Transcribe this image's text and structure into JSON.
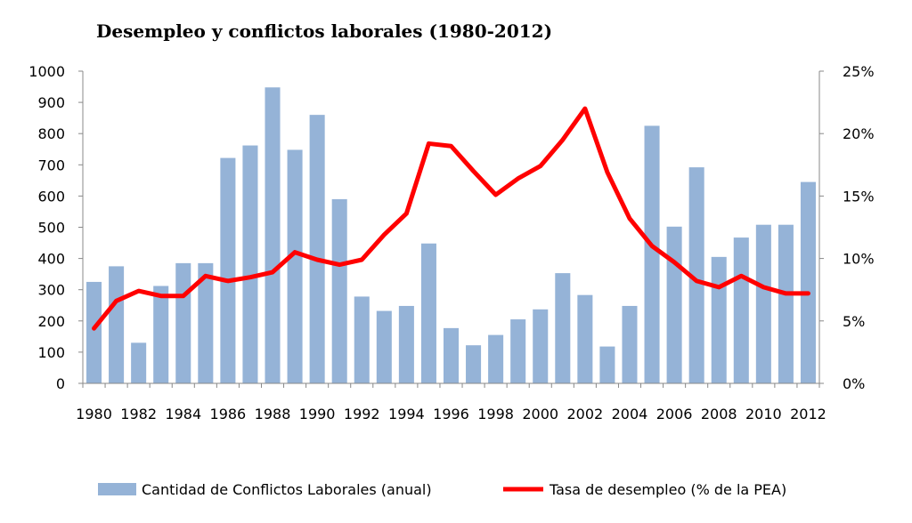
{
  "chart_data": {
    "type": "bar",
    "title": "Desempleo y conflictos laborales (1980-2012)",
    "x": [
      1980,
      1981,
      1982,
      1983,
      1984,
      1985,
      1986,
      1987,
      1988,
      1989,
      1990,
      1991,
      1992,
      1993,
      1994,
      1995,
      1996,
      1997,
      1998,
      1999,
      2000,
      2001,
      2002,
      2003,
      2004,
      2005,
      2006,
      2007,
      2008,
      2009,
      2010,
      2011,
      2012
    ],
    "x_tick_labels": [
      "1980",
      "1982",
      "1984",
      "1986",
      "1988",
      "1990",
      "1992",
      "1994",
      "1996",
      "1998",
      "2000",
      "2002",
      "2004",
      "2006",
      "2008",
      "2010",
      "2012"
    ],
    "series": [
      {
        "name": "Cantidad de Conflictos Laborales (anual)",
        "type": "bar",
        "axis": "left",
        "color": "#95b3d7",
        "values": [
          325,
          375,
          130,
          312,
          385,
          385,
          722,
          762,
          948,
          748,
          860,
          590,
          278,
          232,
          248,
          448,
          177,
          122,
          155,
          205,
          237,
          353,
          283,
          118,
          248,
          825,
          502,
          692,
          405,
          467,
          508,
          508,
          645
        ]
      },
      {
        "name": "Tasa de desempleo (% de la PEA)",
        "type": "line",
        "axis": "right",
        "color": "#ff0000",
        "values": [
          4.4,
          6.6,
          7.4,
          7.0,
          7.0,
          8.6,
          8.2,
          8.5,
          8.9,
          10.5,
          9.9,
          9.5,
          9.9,
          11.9,
          13.6,
          19.2,
          19.0,
          17.0,
          15.1,
          16.4,
          17.4,
          19.5,
          22.0,
          16.9,
          13.2,
          11.0,
          9.7,
          8.2,
          7.7,
          8.6,
          7.7,
          7.2,
          7.2
        ]
      }
    ],
    "ylim_left": [
      0,
      1000
    ],
    "y_ticks_left": [
      "0",
      "100",
      "200",
      "300",
      "400",
      "500",
      "600",
      "700",
      "800",
      "900",
      "1000"
    ],
    "ylim_right": [
      0,
      25
    ],
    "y_ticks_right": [
      "0%",
      "5%",
      "10%",
      "15%",
      "20%",
      "25%"
    ],
    "grid": false,
    "legend_position": "bottom"
  }
}
